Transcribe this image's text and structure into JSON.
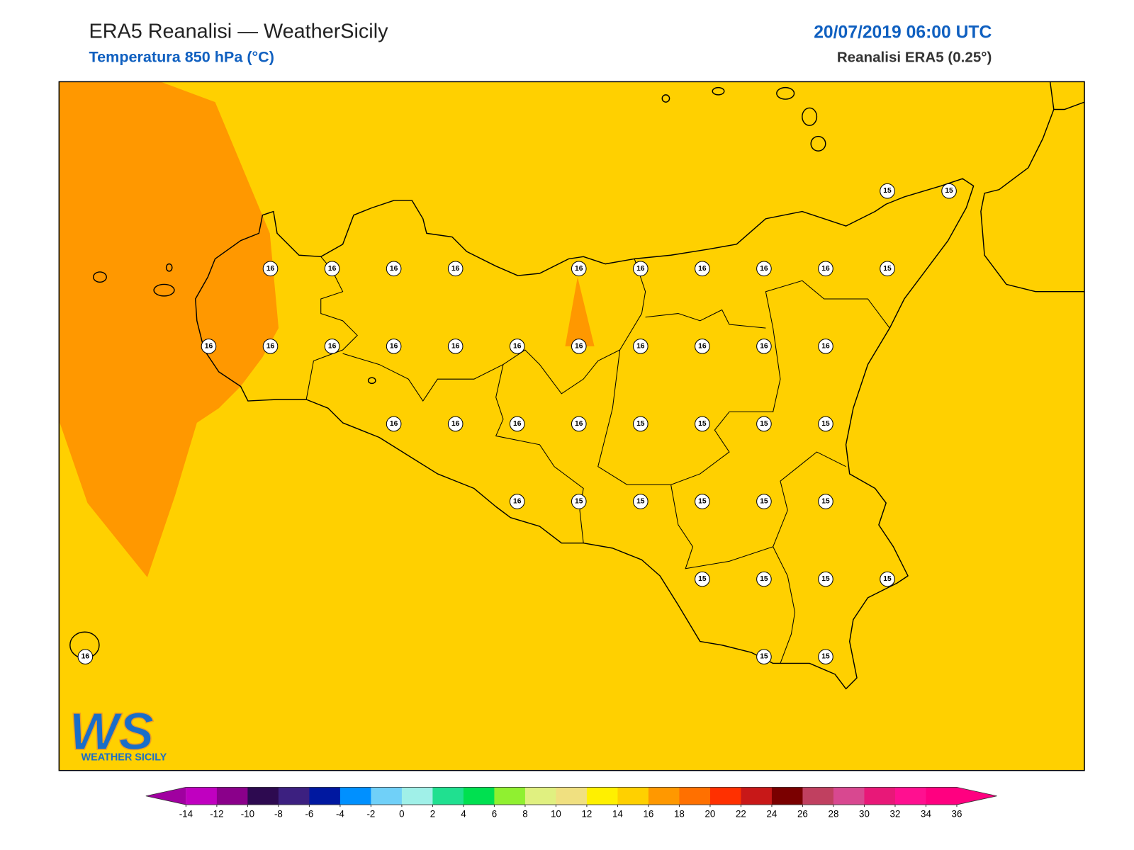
{
  "header": {
    "title": "ERA5 Reanalisi — WeatherSicily",
    "subtitle": "Temperatura 850 hPa (°C)",
    "datetime": "20/07/2019 06:00 UTC",
    "source": "Reanalisi ERA5 (0.25°)"
  },
  "map": {
    "field_color": "#ffd000",
    "warm_area_color": "#ff9800",
    "stations": [
      [
        null,
        null,
        null,
        null,
        null,
        null,
        null,
        null,
        null,
        null,
        null,
        null,
        null,
        15,
        15
      ],
      [
        null,
        null,
        null,
        16,
        16,
        16,
        16,
        null,
        16,
        16,
        16,
        16,
        16,
        15,
        null
      ],
      [
        null,
        null,
        16,
        16,
        16,
        16,
        16,
        16,
        16,
        16,
        16,
        16,
        16,
        null,
        null
      ],
      [
        null,
        null,
        null,
        null,
        null,
        16,
        16,
        16,
        16,
        15,
        15,
        15,
        15,
        null,
        null
      ],
      [
        null,
        null,
        null,
        null,
        null,
        null,
        null,
        16,
        15,
        15,
        15,
        15,
        15,
        null,
        null
      ],
      [
        null,
        null,
        null,
        null,
        null,
        null,
        null,
        null,
        null,
        null,
        15,
        15,
        15,
        15,
        null
      ],
      [
        16,
        null,
        null,
        null,
        null,
        null,
        null,
        null,
        null,
        null,
        null,
        15,
        15,
        null,
        null
      ]
    ]
  },
  "colorbar": {
    "ticks": [
      -14,
      -12,
      -10,
      -8,
      -6,
      -4,
      -2,
      0,
      2,
      4,
      6,
      8,
      10,
      12,
      14,
      16,
      18,
      20,
      22,
      24,
      26,
      28,
      30,
      32,
      34,
      36
    ],
    "colors": [
      "#c000c0",
      "#8a008a",
      "#2d0a50",
      "#3c2080",
      "#0018a0",
      "#0090ff",
      "#70d0f8",
      "#a0f0e8",
      "#20e090",
      "#00e050",
      "#90f030",
      "#e0f080",
      "#f0e080",
      "#fff000",
      "#ffd000",
      "#ff9800",
      "#ff7000",
      "#ff3000",
      "#c81818",
      "#7a0000",
      "#c04060",
      "#d84890",
      "#e81878",
      "#ff1090",
      "#ff0080"
    ],
    "extend_low_color": "#a000a0",
    "extend_high_color": "#ff0080"
  },
  "logo": {
    "text": "WS",
    "caption": "WEATHER SICILY"
  }
}
